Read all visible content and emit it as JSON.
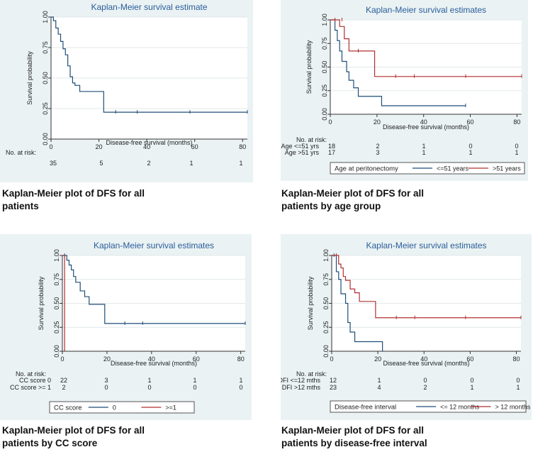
{
  "panels": [
    {
      "caption": "Kaplan-Meier plot of DFS for all patients",
      "chart_data": {
        "type": "line",
        "title": "Kaplan-Meier survival estimate",
        "xlabel": "Disease-free survival (months)",
        "ylabel": "Survival probability",
        "xlim": [
          0,
          82
        ],
        "ylim": [
          0,
          1
        ],
        "xticks": [
          "0",
          "20",
          "40",
          "60",
          "80"
        ],
        "yticks": [
          "0.00",
          "0.25",
          "0.50",
          "0.75",
          "1.00"
        ],
        "grid": "horizontal",
        "risk_table": {
          "title": "No. at risk:",
          "rows": [
            {
              "label": "",
              "values": [
                "35",
                "5",
                "2",
                "1",
                "1"
              ]
            }
          ]
        },
        "legend": null,
        "series": [
          {
            "name": "",
            "color": "#1f4e79",
            "steps": [
              [
                0,
                1.0
              ],
              [
                1,
                0.97
              ],
              [
                2,
                0.91
              ],
              [
                3,
                0.86
              ],
              [
                4,
                0.8
              ],
              [
                5,
                0.74
              ],
              [
                6,
                0.69
              ],
              [
                7,
                0.6
              ],
              [
                8,
                0.51
              ],
              [
                9,
                0.46
              ],
              [
                10,
                0.44
              ],
              [
                12,
                0.39
              ],
              [
                22,
                0.22
              ],
              [
                82,
                0.22
              ]
            ],
            "censored": [
              [
                27,
                0.22
              ],
              [
                36,
                0.22
              ],
              [
                58,
                0.22
              ],
              [
                82,
                0.22
              ]
            ]
          }
        ]
      }
    },
    {
      "caption": "Kaplan-Meier plot of DFS for all patients by age group",
      "chart_data": {
        "type": "line",
        "title": "Kaplan-Meier survival estimates",
        "xlabel": "Disease-free survival (months)",
        "ylabel": "Survival probability",
        "xlim": [
          0,
          82
        ],
        "ylim": [
          0,
          1
        ],
        "xticks": [
          "0",
          "20",
          "40",
          "60",
          "80"
        ],
        "yticks": [
          "0.00",
          "0.25",
          "0.50",
          "0.75",
          "1.00"
        ],
        "grid": "horizontal",
        "risk_table": {
          "title": "No. at risk:",
          "rows": [
            {
              "label": "Age <=51 yrs",
              "values": [
                "18",
                "2",
                "1",
                "0",
                "0"
              ]
            },
            {
              "label": "Age >51 yrs",
              "values": [
                "17",
                "3",
                "1",
                "1",
                "1"
              ]
            }
          ]
        },
        "legend": {
          "title": "Age at peritonectomy",
          "position": "bottom",
          "entries": [
            "<=51 years",
            ">51 years"
          ]
        },
        "series": [
          {
            "name": "<=51 years",
            "color": "#1f4e79",
            "steps": [
              [
                0,
                1.0
              ],
              [
                2,
                0.89
              ],
              [
                3,
                0.78
              ],
              [
                4,
                0.67
              ],
              [
                5,
                0.56
              ],
              [
                7,
                0.45
              ],
              [
                8,
                0.36
              ],
              [
                10,
                0.28
              ],
              [
                12,
                0.19
              ],
              [
                22,
                0.09
              ],
              [
                58,
                0.09
              ]
            ],
            "censored": [
              [
                58,
                0.09
              ]
            ]
          },
          {
            "name": ">51 years",
            "color": "#b03030",
            "steps": [
              [
                0,
                1.0
              ],
              [
                4,
                0.93
              ],
              [
                6,
                0.8
              ],
              [
                8,
                0.67
              ],
              [
                19,
                0.4
              ],
              [
                82,
                0.4
              ]
            ],
            "censored": [
              [
                2,
                1.0
              ],
              [
                5,
                1.0
              ],
              [
                12,
                0.67
              ],
              [
                28,
                0.4
              ],
              [
                36,
                0.4
              ],
              [
                58,
                0.4
              ],
              [
                82,
                0.4
              ]
            ]
          }
        ]
      }
    },
    {
      "caption": "Kaplan-Meier plot of DFS for all patients by CC score",
      "chart_data": {
        "type": "line",
        "title": "Kaplan-Meier survival estimates",
        "xlabel": "Disease-free survival (months)",
        "ylabel": "Survival probability",
        "xlim": [
          0,
          82
        ],
        "ylim": [
          0,
          1
        ],
        "xticks": [
          "0",
          "20",
          "40",
          "60",
          "80"
        ],
        "yticks": [
          "0.00",
          "0.25",
          "0.50",
          "0.75",
          "1.00"
        ],
        "grid": "horizontal",
        "risk_table": {
          "title": "No. at risk:",
          "rows": [
            {
              "label": "CC score 0",
              "values": [
                "22",
                "3",
                "1",
                "1",
                "1"
              ]
            },
            {
              "label": "CC score >= 1",
              "values": [
                "2",
                "0",
                "0",
                "0",
                "0"
              ]
            }
          ]
        },
        "legend": {
          "title": "CC score",
          "position": "bottom",
          "entries": [
            "0",
            ">=1"
          ]
        },
        "series": [
          {
            "name": "0",
            "color": "#1f4e79",
            "steps": [
              [
                0,
                1.0
              ],
              [
                2,
                0.95
              ],
              [
                3,
                0.9
              ],
              [
                4,
                0.85
              ],
              [
                5,
                0.78
              ],
              [
                6,
                0.72
              ],
              [
                8,
                0.63
              ],
              [
                10,
                0.57
              ],
              [
                12,
                0.49
              ],
              [
                19,
                0.29
              ],
              [
                82,
                0.29
              ]
            ],
            "censored": [
              [
                1,
                1.0
              ],
              [
                28,
                0.29
              ],
              [
                36,
                0.29
              ],
              [
                82,
                0.29
              ]
            ]
          },
          {
            "name": ">=1",
            "color": "#b03030",
            "steps": [
              [
                0,
                1.0
              ],
              [
                1,
                0.0
              ]
            ],
            "censored": []
          }
        ]
      }
    },
    {
      "caption": "Kaplan-Meier plot of DFS for all patients by disease-free interval",
      "chart_data": {
        "type": "line",
        "title": "Kaplan-Meier survival estimates",
        "xlabel": "Disease-free survival (months)",
        "ylabel": "Survival probability",
        "xlim": [
          0,
          82
        ],
        "ylim": [
          0,
          1
        ],
        "xticks": [
          "0",
          "20",
          "40",
          "60",
          "80"
        ],
        "yticks": [
          "0.00",
          "0.25",
          "0.50",
          "0.75",
          "1.00"
        ],
        "grid": "horizontal",
        "risk_table": {
          "title": "No. at risk:",
          "rows": [
            {
              "label": "DFI <=12 mths",
              "values": [
                "12",
                "1",
                "0",
                "0",
                "0"
              ]
            },
            {
              "label": "DFI >12 mths",
              "values": [
                "23",
                "4",
                "2",
                "1",
                "1"
              ]
            }
          ]
        },
        "legend": {
          "title": "Disease-free interval",
          "position": "bottom",
          "entries": [
            "<= 12 months",
            "> 12 months"
          ]
        },
        "series": [
          {
            "name": "<= 12 months",
            "color": "#1f4e79",
            "steps": [
              [
                0,
                1.0
              ],
              [
                2,
                0.83
              ],
              [
                3,
                0.75
              ],
              [
                4,
                0.6
              ],
              [
                6,
                0.5
              ],
              [
                7,
                0.3
              ],
              [
                8,
                0.2
              ],
              [
                10,
                0.1
              ],
              [
                22,
                0.0
              ]
            ],
            "censored": [
              [
                1,
                1.0
              ]
            ]
          },
          {
            "name": "> 12 months",
            "color": "#b03030",
            "steps": [
              [
                0,
                1.0
              ],
              [
                3,
                0.91
              ],
              [
                4,
                0.87
              ],
              [
                5,
                0.78
              ],
              [
                6,
                0.74
              ],
              [
                8,
                0.65
              ],
              [
                10,
                0.61
              ],
              [
                12,
                0.52
              ],
              [
                19,
                0.35
              ],
              [
                82,
                0.35
              ]
            ],
            "censored": [
              [
                2,
                1.0
              ],
              [
                28,
                0.35
              ],
              [
                36,
                0.35
              ],
              [
                58,
                0.35
              ],
              [
                82,
                0.35
              ]
            ]
          }
        ]
      }
    }
  ]
}
